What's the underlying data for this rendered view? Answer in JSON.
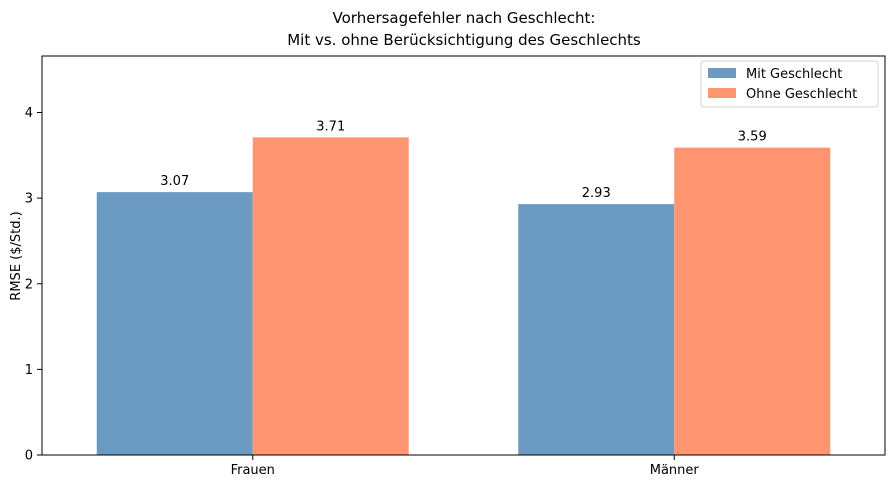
{
  "chart_data": {
    "type": "bar",
    "title_lines": [
      "Vorhersagefehler nach Geschlecht:",
      "Mit vs. ohne Berücksichtigung des Geschlechts"
    ],
    "xlabel": "",
    "ylabel": "RMSE ($/Std.)",
    "categories": [
      "Frauen",
      "Männer"
    ],
    "series": [
      {
        "name": "Mit Geschlecht",
        "values": [
          3.07,
          2.93
        ],
        "labels": [
          "3.07",
          "2.93"
        ],
        "color": "#6b9bc3"
      },
      {
        "name": "Ohne Geschlecht",
        "values": [
          3.71,
          3.59
        ],
        "labels": [
          "3.71",
          "3.59"
        ],
        "color": "#ff9671"
      }
    ],
    "ylim": [
      0,
      4.66
    ],
    "yticks": [
      0,
      1,
      2,
      3,
      4
    ],
    "grid": false,
    "legend": "top-right"
  }
}
